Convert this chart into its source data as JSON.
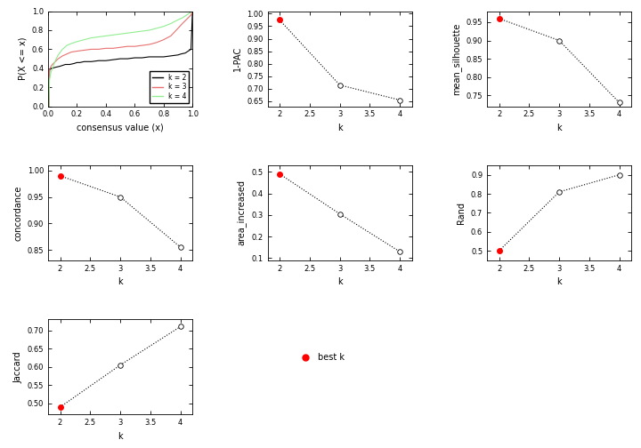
{
  "ecdf": {
    "k2_x": [
      0.0,
      0.005,
      0.01,
      0.02,
      0.03,
      0.05,
      0.08,
      0.1,
      0.12,
      0.15,
      0.18,
      0.2,
      0.22,
      0.25,
      0.3,
      0.35,
      0.4,
      0.45,
      0.5,
      0.55,
      0.6,
      0.65,
      0.7,
      0.75,
      0.8,
      0.85,
      0.9,
      0.92,
      0.95,
      0.97,
      0.98,
      0.99,
      1.0
    ],
    "k2_y": [
      0.0,
      0.0,
      0.38,
      0.4,
      0.4,
      0.41,
      0.42,
      0.43,
      0.44,
      0.44,
      0.45,
      0.46,
      0.46,
      0.47,
      0.47,
      0.48,
      0.48,
      0.49,
      0.5,
      0.5,
      0.51,
      0.51,
      0.52,
      0.52,
      0.52,
      0.53,
      0.54,
      0.55,
      0.56,
      0.58,
      0.59,
      0.6,
      1.0
    ],
    "k3_x": [
      0.0,
      0.005,
      0.01,
      0.02,
      0.03,
      0.05,
      0.07,
      0.1,
      0.13,
      0.16,
      0.2,
      0.25,
      0.3,
      0.35,
      0.4,
      0.45,
      0.5,
      0.55,
      0.6,
      0.65,
      0.7,
      0.75,
      0.8,
      0.85,
      0.9,
      0.93,
      0.95,
      0.97,
      0.99,
      1.0
    ],
    "k3_y": [
      0.0,
      0.0,
      0.38,
      0.42,
      0.44,
      0.47,
      0.5,
      0.53,
      0.55,
      0.57,
      0.58,
      0.59,
      0.6,
      0.6,
      0.61,
      0.61,
      0.62,
      0.63,
      0.63,
      0.64,
      0.65,
      0.67,
      0.7,
      0.74,
      0.82,
      0.87,
      0.9,
      0.93,
      0.96,
      1.0
    ],
    "k4_x": [
      0.0,
      0.005,
      0.01,
      0.02,
      0.03,
      0.05,
      0.07,
      0.1,
      0.13,
      0.16,
      0.2,
      0.25,
      0.3,
      0.35,
      0.4,
      0.45,
      0.5,
      0.55,
      0.6,
      0.65,
      0.7,
      0.75,
      0.8,
      0.85,
      0.9,
      0.93,
      0.95,
      0.97,
      0.99,
      1.0
    ],
    "k4_y": [
      0.0,
      0.0,
      0.28,
      0.36,
      0.4,
      0.48,
      0.54,
      0.6,
      0.64,
      0.66,
      0.68,
      0.7,
      0.72,
      0.73,
      0.74,
      0.75,
      0.76,
      0.77,
      0.78,
      0.79,
      0.8,
      0.82,
      0.84,
      0.87,
      0.91,
      0.93,
      0.95,
      0.97,
      0.99,
      1.0
    ],
    "colors": [
      "black",
      "#e87070",
      "#90ee90"
    ],
    "labels": [
      "k = 2",
      "k = 3",
      "k = 4"
    ]
  },
  "pac": {
    "k": [
      2,
      3,
      4
    ],
    "y": [
      0.975,
      0.715,
      0.655
    ],
    "ylabel": "1-PAC",
    "ylim": [
      0.63,
      1.01
    ],
    "yticks": [
      0.65,
      0.7,
      0.75,
      0.8,
      0.85,
      0.9,
      0.95,
      1.0
    ]
  },
  "silhouette": {
    "k": [
      2,
      3,
      4
    ],
    "y": [
      0.96,
      0.9,
      0.73
    ],
    "ylabel": "mean_silhouette",
    "ylim": [
      0.72,
      0.98
    ],
    "yticks": [
      0.75,
      0.8,
      0.85,
      0.9,
      0.95
    ]
  },
  "concordance": {
    "k": [
      2,
      3,
      4
    ],
    "y": [
      0.99,
      0.95,
      0.855
    ],
    "ylabel": "concordance",
    "ylim": [
      0.83,
      1.01
    ],
    "yticks": [
      0.85,
      0.9,
      0.95,
      1.0
    ]
  },
  "area_increased": {
    "k": [
      2,
      3,
      4
    ],
    "y": [
      0.49,
      0.305,
      0.13
    ],
    "ylabel": "area_increased",
    "ylim": [
      0.09,
      0.53
    ],
    "yticks": [
      0.1,
      0.2,
      0.3,
      0.4,
      0.5
    ]
  },
  "rand": {
    "k": [
      2,
      3,
      4
    ],
    "y": [
      0.5,
      0.81,
      0.9
    ],
    "ylabel": "Rand",
    "ylim": [
      0.45,
      0.95
    ],
    "yticks": [
      0.5,
      0.6,
      0.7,
      0.8,
      0.9
    ]
  },
  "jaccard": {
    "k": [
      2,
      3,
      4
    ],
    "y": [
      0.49,
      0.605,
      0.71
    ],
    "ylabel": "Jaccard",
    "ylim": [
      0.47,
      0.73
    ],
    "yticks": [
      0.5,
      0.55,
      0.6,
      0.65,
      0.7
    ]
  },
  "best_k": 2,
  "line_color": "black",
  "best_color": "red",
  "other_color": "white",
  "marker_size": 4,
  "font_size": 7,
  "xlabel": "k"
}
